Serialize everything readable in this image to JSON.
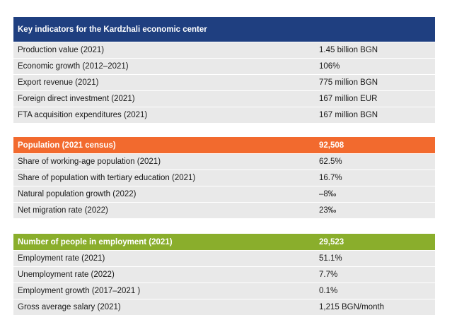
{
  "economic": {
    "title": "Key indicators for the Kardzhali economic center",
    "rows": [
      {
        "label": "Production value (2021)",
        "value": "1.45 billion BGN"
      },
      {
        "label": "Economic growth (2012–2021)",
        "value": "106%"
      },
      {
        "label": "Export revenue (2021)",
        "value": "775 million BGN"
      },
      {
        "label": "Foreign direct investment (2021)",
        "value": "167 million EUR"
      },
      {
        "label": "FTA acquisition expenditures (2021)",
        "value": "167 million BGN"
      }
    ]
  },
  "population": {
    "title": "Population (2021 census)",
    "title_value": "92,508",
    "rows": [
      {
        "label": "Share of working-age population (2021)",
        "value": "62.5%"
      },
      {
        "label": "Share of population with tertiary education (2021)",
        "value": "16.7%"
      },
      {
        "label": "Natural population growth (2022)",
        "value": "–8‰"
      },
      {
        "label": "Net migration rate (2022)",
        "value": "23‰"
      }
    ]
  },
  "employment": {
    "title": "Number of people in employment (2021)",
    "title_value": "29,523",
    "rows": [
      {
        "label": "Employment rate (2021)",
        "value": "51.1%"
      },
      {
        "label": "Unemployment rate (2022)",
        "value": "7.7%"
      },
      {
        "label": "Employment growth (2017–2021 )",
        "value": "0.1%"
      },
      {
        "label": "Gross average salary (2021)",
        "value": "1,215 BGN/month"
      }
    ]
  },
  "colors": {
    "blue_header": "#1f3f80",
    "orange_header": "#f26a2e",
    "green_header": "#8aae2c",
    "row_background": "#e9e9e9"
  }
}
